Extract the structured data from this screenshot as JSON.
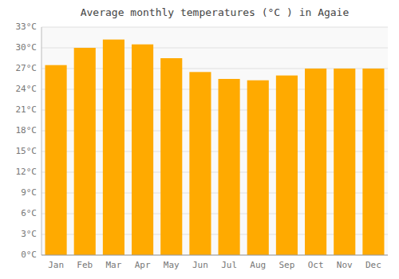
{
  "chart_data": {
    "type": "bar",
    "title": "Average monthly temperatures (°C ) in Agaie",
    "categories": [
      "Jan",
      "Feb",
      "Mar",
      "Apr",
      "May",
      "Jun",
      "Jul",
      "Aug",
      "Sep",
      "Oct",
      "Nov",
      "Dec"
    ],
    "values": [
      27.5,
      30.0,
      31.2,
      30.5,
      28.5,
      26.5,
      25.5,
      25.3,
      26.0,
      27.0,
      27.0,
      27.0
    ],
    "color": "#FFAA00",
    "ylim": [
      0,
      33
    ],
    "yticks": [
      {
        "value": 0,
        "label": "0°C"
      },
      {
        "value": 3,
        "label": "3°C"
      },
      {
        "value": 6,
        "label": "6°C"
      },
      {
        "value": 9,
        "label": "9°C"
      },
      {
        "value": 12,
        "label": "12°C"
      },
      {
        "value": 15,
        "label": "15°C"
      },
      {
        "value": 18,
        "label": "18°C"
      },
      {
        "value": 21,
        "label": "21°C"
      },
      {
        "value": 24,
        "label": "24°C"
      },
      {
        "value": 27,
        "label": "27°C"
      },
      {
        "value": 30,
        "label": "30°C"
      },
      {
        "value": 33,
        "label": "33°C"
      }
    ],
    "grid": true
  }
}
